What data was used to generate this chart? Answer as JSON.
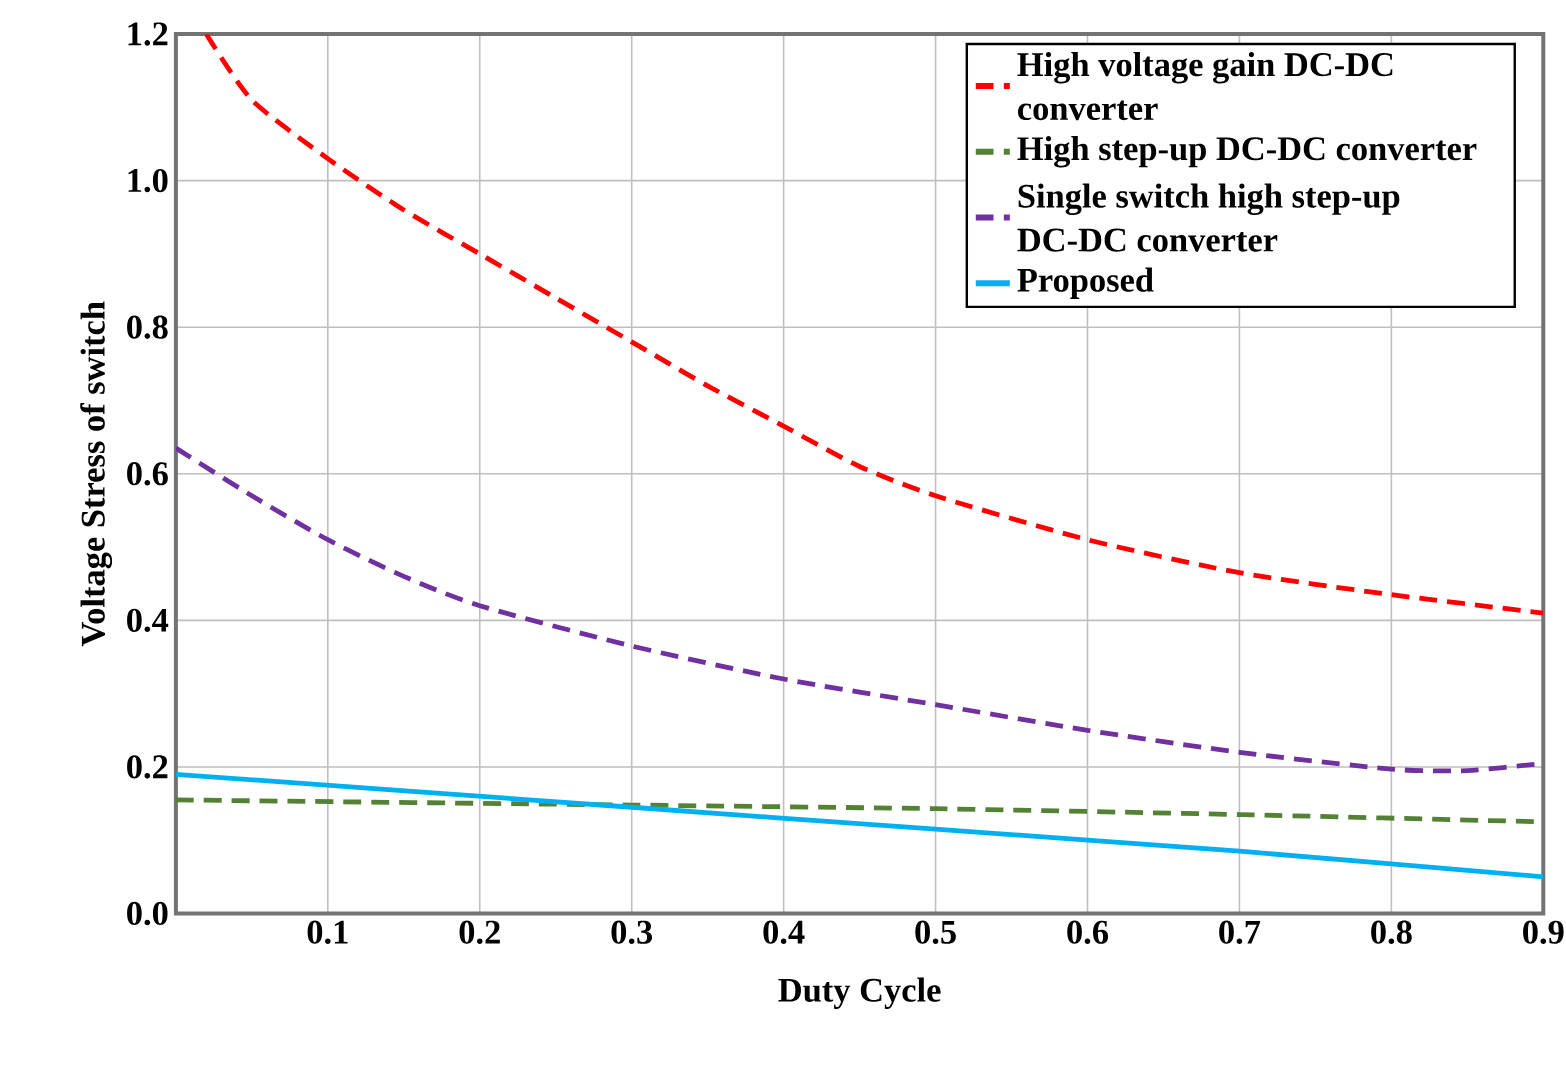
{
  "chart_data": {
    "type": "line",
    "xlabel": "Duty Cycle",
    "ylabel": "Voltage Stress of switch",
    "xlim": [
      0,
      0.9
    ],
    "ylim": [
      0,
      1.2
    ],
    "xticks": [
      0.1,
      0.2,
      0.3,
      0.4,
      0.5,
      0.6,
      0.7,
      0.8,
      0.9
    ],
    "yticks": [
      {
        "value": 0,
        "label": "0.0"
      },
      {
        "value": 0.2,
        "label": "0.2"
      },
      {
        "value": 0.4,
        "label": "0.4"
      },
      {
        "value": 0.6,
        "label": "0.6"
      },
      {
        "value": 0.8,
        "label": "0.8"
      },
      {
        "value": 1.0,
        "label": "1.0"
      },
      {
        "value": 1.2,
        "label": "1.2"
      }
    ],
    "grid": true,
    "legend": "top right",
    "series": [
      {
        "name": "High voltage gain DC-DC converter",
        "color": "#ff0000",
        "line_style": "dashed",
        "x": [
          0.02,
          0.05,
          0.1,
          0.15,
          0.2,
          0.25,
          0.3,
          0.35,
          0.4,
          0.45,
          0.5,
          0.6,
          0.7,
          0.8,
          0.9
        ],
        "values": [
          1.2,
          1.11,
          1.03,
          0.96,
          0.9,
          0.84,
          0.78,
          0.72,
          0.665,
          0.61,
          0.57,
          0.51,
          0.465,
          0.435,
          0.41
        ]
      },
      {
        "name": "High step-up DC-DC converter",
        "color": "#548235",
        "line_style": "dashed",
        "x": [
          0,
          0.3,
          0.5,
          0.7,
          0.9
        ],
        "values": [
          0.155,
          0.148,
          0.143,
          0.135,
          0.125
        ]
      },
      {
        "name": "Single switch high step-up DC-DC converter",
        "color": "#7030a0",
        "line_style": "dashed",
        "x": [
          0,
          0.05,
          0.1,
          0.15,
          0.2,
          0.3,
          0.4,
          0.5,
          0.6,
          0.7,
          0.8,
          0.85,
          0.9
        ],
        "values": [
          0.635,
          0.57,
          0.51,
          0.46,
          0.42,
          0.365,
          0.32,
          0.285,
          0.25,
          0.22,
          0.197,
          0.195,
          0.205
        ]
      },
      {
        "name": "Proposed",
        "color": "#00b0f0",
        "line_style": "solid",
        "x": [
          0,
          0.3,
          0.5,
          0.7,
          0.9
        ],
        "values": [
          0.19,
          0.145,
          0.115,
          0.085,
          0.05
        ]
      }
    ]
  }
}
